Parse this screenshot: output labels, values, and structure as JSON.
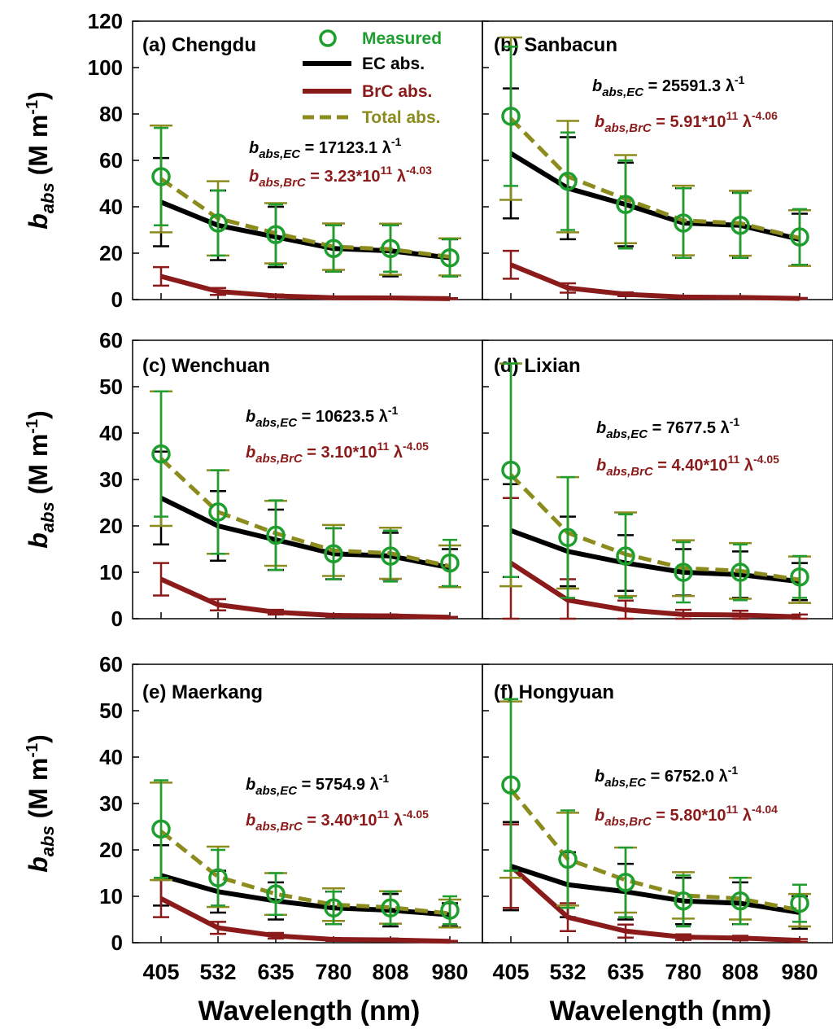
{
  "colors": {
    "measured": "#1e9e2e",
    "ec": "#000000",
    "brc": "#8b1a1a",
    "total": "#8c8c1e",
    "ec_err": "#000000",
    "brc_err": "#8b1a1a",
    "total_err": "#8c8c1e"
  },
  "legend": {
    "measured": "Measured",
    "ec": "EC abs.",
    "brc": "BrC abs.",
    "total": "Total abs."
  },
  "axes": {
    "xlabel": "Wavelength (nm)",
    "ylabel_main": "b",
    "ylabel_sub": "abs",
    "ylabel_unit": " (M m",
    "ylabel_sup": "-1",
    "ylabel_close": ")"
  },
  "chart_data": {
    "type": "line",
    "x": [
      405,
      532,
      635,
      780,
      808,
      980
    ],
    "x_tick_labels": [
      "405",
      "532",
      "635",
      "780",
      "808",
      "980"
    ],
    "panels": [
      {
        "id": "a",
        "title": "(a) Chengdu",
        "ylim": [
          0,
          120
        ],
        "yticks": [
          0,
          20,
          40,
          60,
          80,
          100,
          120
        ],
        "eq_ec": {
          "coef": "17123.1",
          "exp": "-1"
        },
        "eq_brc": {
          "coef": "3.23*10",
          "pow": "11",
          "exp": "-4.03"
        },
        "measured": [
          53,
          33,
          28,
          22,
          22,
          18
        ],
        "measured_err": [
          21,
          14,
          13,
          10,
          10,
          8
        ],
        "ec": [
          42,
          32,
          27,
          22,
          21,
          18
        ],
        "ec_err": [
          19,
          15,
          13,
          10,
          11,
          8
        ],
        "brc": [
          10,
          3.5,
          1.6,
          0.8,
          0.7,
          0.4
        ],
        "brc_err": [
          4,
          1.5,
          0.6,
          0.3,
          0.3,
          0.2
        ],
        "total": [
          52,
          35,
          28.6,
          22.8,
          21.7,
          18.4
        ],
        "total_err": [
          23,
          16,
          13,
          10,
          11,
          8
        ]
      },
      {
        "id": "b",
        "title": "(b) Sanbacun",
        "ylim": [
          0,
          120
        ],
        "yticks": [
          0,
          20,
          40,
          60,
          80,
          100,
          120
        ],
        "eq_ec": {
          "coef": "25591.3",
          "exp": "-1"
        },
        "eq_brc": {
          "coef": "5.91*10",
          "pow": "11",
          "exp": "-4.06"
        },
        "measured": [
          79,
          51,
          41,
          33,
          32,
          27
        ],
        "measured_err": [
          30,
          21,
          19,
          15,
          14,
          12
        ],
        "ec": [
          63,
          48,
          41,
          33,
          32,
          26
        ],
        "ec_err": [
          28,
          22,
          18,
          15,
          14,
          11
        ],
        "brc": [
          15,
          5,
          2.3,
          1.1,
          0.9,
          0.5
        ],
        "brc_err": [
          6,
          2,
          0.8,
          0.4,
          0.4,
          0.2
        ],
        "total": [
          78,
          53,
          43.3,
          34.1,
          32.9,
          26.5
        ],
        "total_err": [
          35,
          24,
          19,
          15,
          14,
          12
        ]
      },
      {
        "id": "c",
        "title": "(c) Wenchuan",
        "ylim": [
          0,
          60
        ],
        "yticks": [
          0,
          10,
          20,
          30,
          40,
          50,
          60
        ],
        "eq_ec": {
          "coef": "10623.5",
          "exp": "-1"
        },
        "eq_brc": {
          "coef": "3.10*10",
          "pow": "11",
          "exp": "-4.05"
        },
        "measured": [
          35.5,
          23,
          18,
          14,
          13.5,
          12
        ],
        "measured_err": [
          13.5,
          9,
          7.5,
          5.5,
          5.5,
          5
        ],
        "ec": [
          26,
          20,
          17,
          14,
          13.5,
          11
        ],
        "ec_err": [
          10,
          7.5,
          6.5,
          5.5,
          5,
          4
        ],
        "brc": [
          8.5,
          3,
          1.4,
          0.7,
          0.6,
          0.3
        ],
        "brc_err": [
          3.5,
          1.2,
          0.5,
          0.3,
          0.3,
          0.1
        ],
        "total": [
          34.5,
          23,
          18.4,
          14.7,
          14.1,
          11.3
        ],
        "total_err": [
          14.5,
          9,
          7,
          5.5,
          5.5,
          4.5
        ]
      },
      {
        "id": "d",
        "title": "(d) Lixian",
        "ylim": [
          0,
          60
        ],
        "yticks": [
          0,
          10,
          20,
          30,
          40,
          50,
          60
        ],
        "eq_ec": {
          "coef": "7677.5",
          "exp": "-1"
        },
        "eq_brc": {
          "coef": "4.40*10",
          "pow": "11",
          "exp": "-4.05"
        },
        "measured": [
          32,
          17.5,
          13.5,
          10,
          10,
          9
        ],
        "measured_err": [
          23,
          13,
          9,
          6.5,
          6,
          4.5
        ],
        "ec": [
          19,
          14.5,
          12,
          10,
          9.5,
          8
        ],
        "ec_err": [
          10,
          7.5,
          6,
          5,
          5,
          4
        ],
        "brc": [
          12,
          4,
          1.9,
          0.9,
          0.8,
          0.4
        ],
        "brc_err": [
          14,
          4.5,
          2,
          1,
          0.9,
          0.5
        ],
        "total": [
          31,
          18.5,
          13.9,
          10.9,
          10.3,
          8.4
        ],
        "total_err": [
          24,
          12,
          9,
          6,
          6,
          5
        ]
      },
      {
        "id": "e",
        "title": "(e) Maerkang",
        "ylim": [
          0,
          60
        ],
        "yticks": [
          0,
          10,
          20,
          30,
          40,
          50,
          60
        ],
        "eq_ec": {
          "coef": "5754.9",
          "exp": "-1"
        },
        "eq_brc": {
          "coef": "3.40*10",
          "pow": "11",
          "exp": "-4.05"
        },
        "measured": [
          24.5,
          14,
          10.5,
          7.5,
          7.5,
          7
        ],
        "measured_err": [
          10.5,
          6,
          4.5,
          3.5,
          3.5,
          3
        ],
        "ec": [
          14.5,
          11,
          9,
          7.5,
          7,
          6
        ],
        "ec_err": [
          6.5,
          4.5,
          4,
          3.5,
          3.5,
          2.5
        ],
        "brc": [
          9.5,
          3.2,
          1.5,
          0.7,
          0.6,
          0.3
        ],
        "brc_err": [
          4,
          1.3,
          0.6,
          0.3,
          0.3,
          0.1
        ],
        "total": [
          24,
          14.2,
          10.5,
          8.2,
          7.6,
          6.3
        ],
        "total_err": [
          10.5,
          6.5,
          4.5,
          3.5,
          3.5,
          3
        ]
      },
      {
        "id": "f",
        "title": "(f) Hongyuan",
        "ylim": [
          0,
          60
        ],
        "yticks": [
          0,
          10,
          20,
          30,
          40,
          50,
          60
        ],
        "eq_ec": {
          "coef": "6752.0",
          "exp": "-1"
        },
        "eq_brc": {
          "coef": "5.80*10",
          "pow": "11",
          "exp": "-4.04"
        },
        "measured": [
          34,
          18,
          13,
          9,
          9,
          8.5
        ],
        "measured_err": [
          18.5,
          10.5,
          7.5,
          5.5,
          5,
          4
        ],
        "ec": [
          16.5,
          12.5,
          11,
          9,
          8.5,
          6.5
        ],
        "ec_err": [
          9.5,
          7,
          6,
          5,
          4.5,
          3.5
        ],
        "brc": [
          16.5,
          5.5,
          2.5,
          1.2,
          1,
          0.5
        ],
        "brc_err": [
          9,
          3,
          1.4,
          0.6,
          0.5,
          0.3
        ],
        "total": [
          33,
          18,
          13.5,
          10.2,
          9.5,
          7
        ],
        "total_err": [
          19,
          10,
          7,
          5,
          4.5,
          3.5
        ]
      }
    ]
  }
}
